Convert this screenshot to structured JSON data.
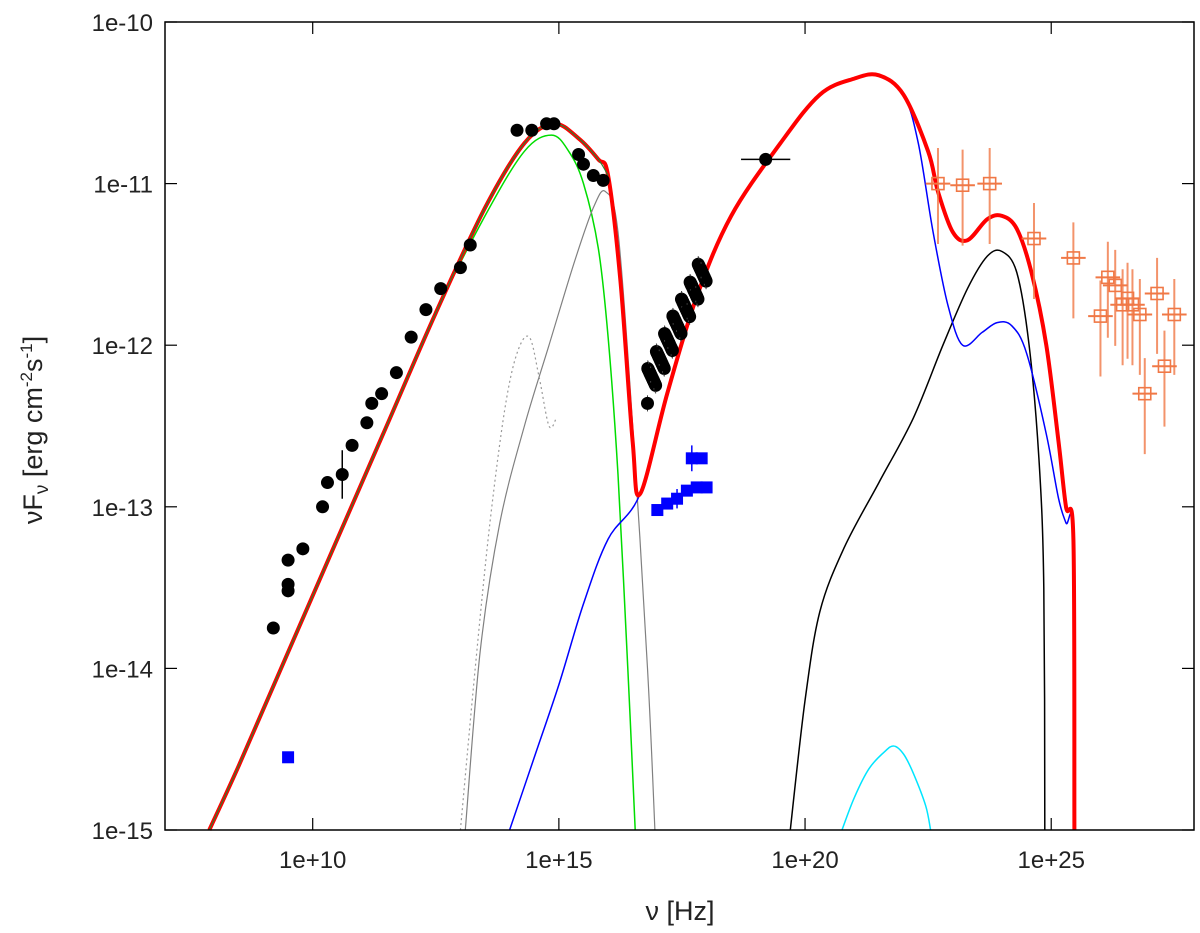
{
  "chart_data": {
    "type": "scatter",
    "xlabel": "ν [Hz]",
    "ylabel_parts": [
      "νF",
      "ν",
      " [erg cm",
      "-2",
      "s",
      "-1",
      "]"
    ],
    "x_scale": "log10",
    "y_scale": "log10",
    "xlim_log10": [
      7.0,
      27.9
    ],
    "ylim_log10": [
      -15,
      -10
    ],
    "x_ticks": [
      {
        "log": 10,
        "label": "1e+10"
      },
      {
        "log": 15,
        "label": "1e+15"
      },
      {
        "log": 20,
        "label": "1e+20"
      },
      {
        "log": 25,
        "label": "1e+25"
      }
    ],
    "y_ticks": [
      {
        "log": -10,
        "label": "1e-10"
      },
      {
        "log": -11,
        "label": "1e-11"
      },
      {
        "log": -12,
        "label": "1e-12"
      },
      {
        "log": -13,
        "label": "1e-13"
      },
      {
        "log": -14,
        "label": "1e-14"
      },
      {
        "log": -15,
        "label": "1e-15"
      }
    ],
    "grid": false,
    "legend": "none",
    "data_sets": [
      {
        "name": "",
        "marker": "filled-circle",
        "color": "#000000",
        "points": [
          [
            9.2,
            -13.75
          ],
          [
            9.5,
            -13.52
          ],
          [
            9.5,
            -13.48
          ],
          [
            9.5,
            -13.33
          ],
          [
            9.8,
            -13.26
          ],
          [
            10.2,
            -13.0
          ],
          [
            10.3,
            -12.85
          ],
          [
            10.6,
            -12.8
          ],
          [
            10.8,
            -12.62
          ],
          [
            11.1,
            -12.48
          ],
          [
            11.2,
            -12.36
          ],
          [
            11.4,
            -12.3
          ],
          [
            11.7,
            -12.17
          ],
          [
            12.0,
            -11.95
          ],
          [
            12.3,
            -11.78
          ],
          [
            12.6,
            -11.65
          ],
          [
            13.0,
            -11.52
          ],
          [
            13.2,
            -11.38
          ],
          [
            14.15,
            -10.67
          ],
          [
            14.45,
            -10.67
          ],
          [
            14.75,
            -10.63
          ],
          [
            14.9,
            -10.63
          ],
          [
            15.4,
            -10.82
          ],
          [
            15.5,
            -10.88
          ],
          [
            15.7,
            -10.95
          ],
          [
            15.9,
            -10.98
          ],
          [
            19.2,
            -10.85
          ]
        ],
        "xerr_points": [
          [
            19.2,
            -10.85,
            0.5
          ]
        ],
        "yerr_points": [
          [
            10.6,
            -12.8,
            0.15
          ]
        ]
      },
      {
        "name": "",
        "marker": "filled-circle",
        "color": "#000000",
        "cluster": true,
        "x_range": [
          16.8,
          18.0
        ],
        "y_range": [
          -12.25,
          -11.5
        ]
      },
      {
        "name": "",
        "marker": "filled-square",
        "color": "#0000ff",
        "points": [
          [
            9.5,
            -14.55
          ],
          [
            17.0,
            -13.02
          ],
          [
            17.2,
            -12.98
          ],
          [
            17.4,
            -12.95
          ],
          [
            17.6,
            -12.9
          ],
          [
            17.8,
            -12.88
          ],
          [
            18.0,
            -12.88
          ],
          [
            17.7,
            -12.7
          ],
          [
            17.9,
            -12.7
          ]
        ],
        "yerr_points": [
          [
            17.4,
            -12.95,
            0.06
          ],
          [
            17.7,
            -12.7,
            0.08
          ]
        ]
      },
      {
        "name": "",
        "marker": "open-square",
        "color": "#f07846",
        "points": [
          [
            22.7,
            -11.0
          ],
          [
            23.2,
            -11.01
          ],
          [
            23.75,
            -11.0
          ],
          [
            24.65,
            -11.34
          ],
          [
            25.45,
            -11.46
          ],
          [
            26.0,
            -11.82
          ],
          [
            26.15,
            -11.58
          ],
          [
            26.3,
            -11.63
          ],
          [
            26.45,
            -11.75
          ],
          [
            26.55,
            -11.71
          ],
          [
            26.65,
            -11.75
          ],
          [
            26.8,
            -11.81
          ],
          [
            26.9,
            -12.3
          ],
          [
            27.15,
            -11.68
          ],
          [
            27.3,
            -12.13
          ],
          [
            27.5,
            -11.81
          ]
        ],
        "xerr": 0.25,
        "yerr": 0.22
      }
    ],
    "model_curves": [
      {
        "name": "",
        "color": "#ff0000",
        "width": 4,
        "points": [
          [
            7.9,
            -15.0
          ],
          [
            8.5,
            -14.6
          ],
          [
            9.5,
            -13.9
          ],
          [
            10.5,
            -13.2
          ],
          [
            11.5,
            -12.5
          ],
          [
            12.5,
            -11.8
          ],
          [
            13.5,
            -11.15
          ],
          [
            14.3,
            -10.75
          ],
          [
            14.9,
            -10.63
          ],
          [
            15.4,
            -10.72
          ],
          [
            15.8,
            -10.85
          ],
          [
            16.0,
            -10.95
          ],
          [
            16.25,
            -11.6
          ],
          [
            16.5,
            -12.6
          ],
          [
            16.65,
            -12.92
          ],
          [
            17.2,
            -12.3
          ],
          [
            17.8,
            -11.7
          ],
          [
            18.5,
            -11.2
          ],
          [
            19.5,
            -10.75
          ],
          [
            20.3,
            -10.45
          ],
          [
            21.0,
            -10.35
          ],
          [
            21.5,
            -10.33
          ],
          [
            22.0,
            -10.45
          ],
          [
            22.5,
            -10.8
          ],
          [
            22.7,
            -11.05
          ],
          [
            23.0,
            -11.3
          ],
          [
            23.3,
            -11.35
          ],
          [
            23.7,
            -11.22
          ],
          [
            24.0,
            -11.2
          ],
          [
            24.3,
            -11.28
          ],
          [
            24.6,
            -11.55
          ],
          [
            24.9,
            -12.0
          ],
          [
            25.15,
            -12.6
          ],
          [
            25.3,
            -13.0
          ],
          [
            25.45,
            -13.2
          ],
          [
            25.47,
            -15.0
          ]
        ]
      },
      {
        "name": "",
        "color": "#00dd00",
        "width": 1.5,
        "points": [
          [
            7.9,
            -15.0
          ],
          [
            8.5,
            -14.6
          ],
          [
            9.5,
            -13.9
          ],
          [
            10.5,
            -13.2
          ],
          [
            11.5,
            -12.5
          ],
          [
            12.5,
            -11.8
          ],
          [
            13.5,
            -11.2
          ],
          [
            14.3,
            -10.8
          ],
          [
            14.85,
            -10.7
          ],
          [
            15.2,
            -10.8
          ],
          [
            15.5,
            -11.0
          ],
          [
            15.8,
            -11.4
          ],
          [
            16.0,
            -11.95
          ],
          [
            16.2,
            -12.8
          ],
          [
            16.4,
            -14.0
          ],
          [
            16.55,
            -15.0
          ]
        ]
      },
      {
        "name": "",
        "color": "#808080",
        "width": 1.2,
        "points": [
          [
            13.1,
            -15.0
          ],
          [
            13.4,
            -13.9
          ],
          [
            13.8,
            -13.1
          ],
          [
            14.3,
            -12.5
          ],
          [
            14.8,
            -12.0
          ],
          [
            15.3,
            -11.5
          ],
          [
            15.7,
            -11.15
          ],
          [
            15.95,
            -11.05
          ],
          [
            16.2,
            -11.3
          ],
          [
            16.5,
            -12.5
          ],
          [
            16.8,
            -14.0
          ],
          [
            16.95,
            -15.0
          ]
        ]
      },
      {
        "name": "",
        "color": "#999999",
        "width": 1.2,
        "dashed": true,
        "points": [
          [
            13.0,
            -15.0
          ],
          [
            13.3,
            -14.0
          ],
          [
            13.6,
            -13.1
          ],
          [
            13.9,
            -12.4
          ],
          [
            14.15,
            -12.05
          ],
          [
            14.4,
            -11.95
          ],
          [
            14.6,
            -12.2
          ],
          [
            14.8,
            -12.5
          ],
          [
            14.95,
            -12.45
          ]
        ]
      },
      {
        "name": "",
        "color": "#0000ff",
        "width": 1.5,
        "points": [
          [
            14.0,
            -15.0
          ],
          [
            14.5,
            -14.55
          ],
          [
            15.0,
            -14.1
          ],
          [
            15.5,
            -13.6
          ],
          [
            16.0,
            -13.2
          ],
          [
            16.65,
            -12.92
          ],
          [
            17.2,
            -12.3
          ],
          [
            17.8,
            -11.7
          ],
          [
            18.5,
            -11.2
          ],
          [
            19.5,
            -10.75
          ],
          [
            20.3,
            -10.45
          ],
          [
            21.0,
            -10.35
          ],
          [
            21.5,
            -10.33
          ],
          [
            22.0,
            -10.45
          ],
          [
            22.3,
            -10.75
          ],
          [
            22.6,
            -11.3
          ],
          [
            22.9,
            -11.75
          ],
          [
            23.2,
            -12.0
          ],
          [
            23.6,
            -11.92
          ],
          [
            23.9,
            -11.86
          ],
          [
            24.2,
            -11.88
          ],
          [
            24.5,
            -12.05
          ],
          [
            24.9,
            -12.55
          ],
          [
            25.15,
            -12.95
          ],
          [
            25.3,
            -13.1
          ],
          [
            25.45,
            -13.2
          ],
          [
            25.47,
            -15.0
          ]
        ]
      },
      {
        "name": "",
        "color": "#000000",
        "width": 1.5,
        "points": [
          [
            19.7,
            -15.0
          ],
          [
            20.0,
            -14.2
          ],
          [
            20.3,
            -13.65
          ],
          [
            20.8,
            -13.25
          ],
          [
            21.5,
            -12.85
          ],
          [
            22.2,
            -12.45
          ],
          [
            22.8,
            -12.0
          ],
          [
            23.3,
            -11.65
          ],
          [
            23.7,
            -11.45
          ],
          [
            24.0,
            -11.42
          ],
          [
            24.3,
            -11.55
          ],
          [
            24.55,
            -12.0
          ],
          [
            24.75,
            -12.7
          ],
          [
            24.85,
            -13.5
          ],
          [
            24.87,
            -15.0
          ]
        ]
      },
      {
        "name": "",
        "color": "#00e5ff",
        "width": 1.5,
        "points": [
          [
            20.75,
            -15.0
          ],
          [
            21.0,
            -14.8
          ],
          [
            21.3,
            -14.62
          ],
          [
            21.6,
            -14.52
          ],
          [
            21.8,
            -14.48
          ],
          [
            22.0,
            -14.53
          ],
          [
            22.2,
            -14.65
          ],
          [
            22.45,
            -14.85
          ],
          [
            22.55,
            -15.0
          ]
        ]
      }
    ]
  }
}
